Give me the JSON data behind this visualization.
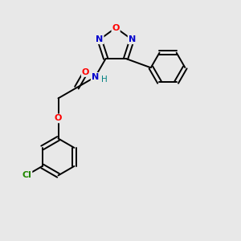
{
  "background_color": "#e8e8e8",
  "bond_color": "#000000",
  "atom_colors": {
    "O": "#ff0000",
    "N": "#0000cc",
    "Cl": "#228800",
    "C": "#000000",
    "H": "#008080"
  },
  "figsize": [
    3.0,
    3.0
  ],
  "dpi": 100,
  "xlim": [
    0,
    10
  ],
  "ylim": [
    0,
    10
  ]
}
